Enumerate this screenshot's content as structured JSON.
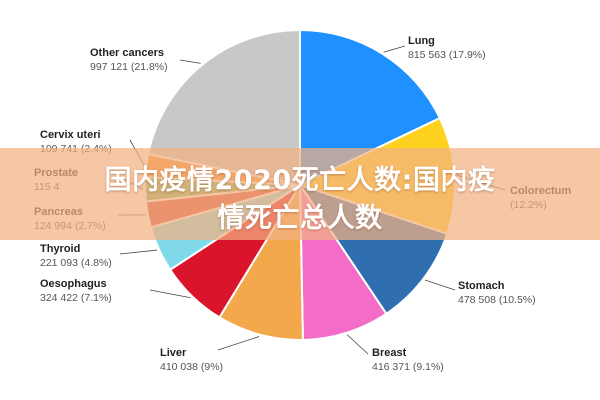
{
  "banner": {
    "line1": "国内疫情2020死亡人数:国内疫",
    "line2": "情死亡总人数"
  },
  "chart_data": {
    "type": "pie",
    "slices": [
      {
        "name": "Lung",
        "value_text": "815 563 (17.9%)",
        "value": 815563,
        "percent": 17.9,
        "color": "#1E90FF"
      },
      {
        "name": "Colorectum",
        "value_text": "(12.2%)",
        "value": null,
        "percent": 12.2,
        "color": "#FFD21F"
      },
      {
        "name": "Stomach",
        "value_text": "478 508 (10.5%)",
        "value": 478508,
        "percent": 10.5,
        "color": "#2F6FB0"
      },
      {
        "name": "Breast",
        "value_text": "416 371 (9.1%)",
        "value": 416371,
        "percent": 9.1,
        "color": "#F36CC8"
      },
      {
        "name": "Liver",
        "value_text": "410 038 (9%)",
        "value": 410038,
        "percent": 9.0,
        "color": "#F4A84C"
      },
      {
        "name": "Oesophagus",
        "value_text": "324 422 (7.1%)",
        "value": 324422,
        "percent": 7.1,
        "color": "#D9142B"
      },
      {
        "name": "Thyroid",
        "value_text": "221 093 (4.8%)",
        "value": 221093,
        "percent": 4.8,
        "color": "#7FD9E8"
      },
      {
        "name": "Pancreas",
        "value_text": "124 994 (2.7%)",
        "value": 124994,
        "percent": 2.7,
        "color": "#D8443C"
      },
      {
        "name": "Prostate",
        "value_text": "115 4",
        "value": null,
        "percent": 2.5,
        "color": "#7BB661"
      },
      {
        "name": "Cervix uteri",
        "value_text": "109 741 (2.4%)",
        "value": 109741,
        "percent": 2.4,
        "color": "#F28C28"
      },
      {
        "name": "Other cancers",
        "value_text": "997 121 (21.8%)",
        "value": 997121,
        "percent": 21.8,
        "color": "#C8C8C8"
      }
    ]
  }
}
